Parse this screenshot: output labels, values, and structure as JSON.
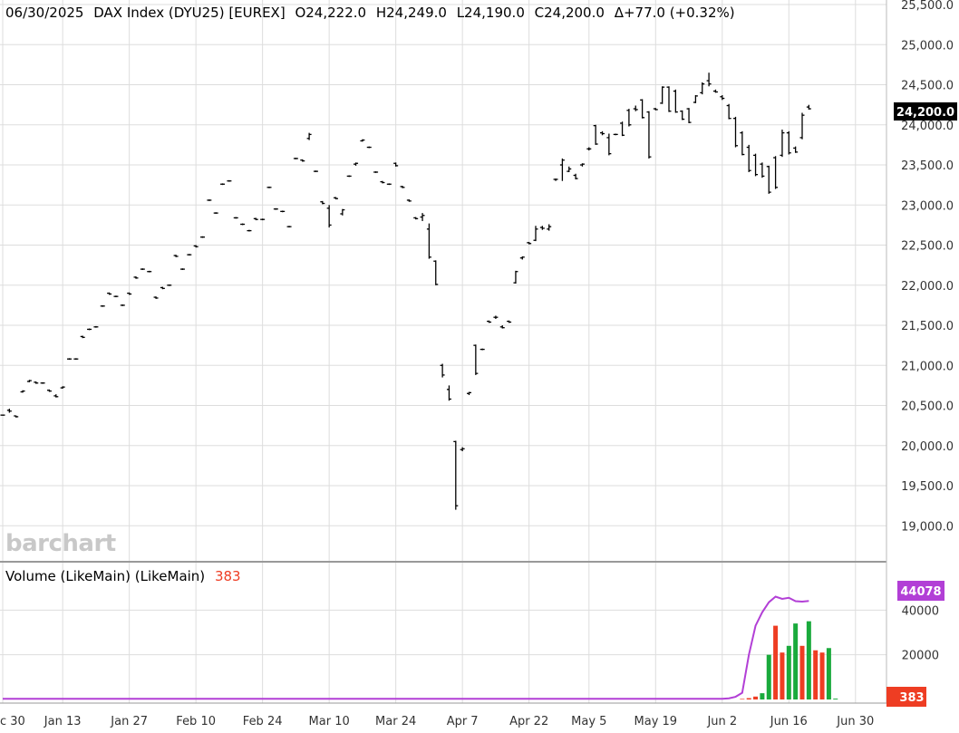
{
  "header": {
    "date": "06/30/2025",
    "symbol": "DAX Index (DYU25) [EUREX]",
    "open": "O24,222.0",
    "high": "H24,249.0",
    "low": "L24,190.0",
    "close": "C24,200.0",
    "change": "Δ+77.0 (+0.32%)"
  },
  "watermark": "barchart",
  "last_price_tag": "24,200.0",
  "volume_panel": {
    "label": "Volume (LikeMain)  (LikeMain)",
    "last_value": "383",
    "ma_tag": "44078",
    "volume_tag": "383"
  },
  "colors": {
    "ohlc": "#000000",
    "volume_up": "#1aaa3c",
    "volume_down": "#ee3d23",
    "volume_ma": "#b23fd6",
    "grid": "#dddddd",
    "last_tag_bg": "#000000"
  },
  "chart_data": [
    {
      "type": "ohlc",
      "title": "06/30/2025 DAX Index (DYU25) [EUREX]",
      "ylim": [
        18800,
        25500
      ],
      "y_ticks": [
        "25,500.0",
        "25,000.0",
        "24,500.0",
        "24,000.0",
        "23,500.0",
        "23,000.0",
        "22,500.0",
        "22,000.0",
        "21,500.0",
        "21,000.0",
        "20,500.0",
        "20,000.0",
        "19,500.0",
        "19,000.0"
      ],
      "y_tick_values": [
        25500,
        25000,
        24500,
        24000,
        23500,
        23000,
        22500,
        22000,
        21500,
        21000,
        20500,
        20000,
        19500,
        19000
      ],
      "x_ticks": [
        "c 30",
        "Jan 13",
        "Jan 27",
        "Feb 10",
        "Feb 24",
        "Mar 10",
        "Mar 24",
        "Apr 7",
        "Apr 22",
        "May 5",
        "May 19",
        "Jun 2",
        "Jun 16",
        "Jun 30"
      ],
      "x_tick_index": [
        0,
        9,
        19,
        29,
        39,
        49,
        59,
        69,
        79,
        88,
        98,
        108,
        118,
        128
      ],
      "bars": [
        [
          20380,
          20385,
          20375,
          20380
        ],
        [
          20440,
          20460,
          20410,
          20430
        ],
        [
          20370,
          20375,
          20350,
          20360
        ],
        [
          20670,
          20690,
          20660,
          20680
        ],
        [
          20800,
          20820,
          20790,
          20810
        ],
        [
          20790,
          20800,
          20770,
          20780
        ],
        [
          20780,
          20790,
          20770,
          20780
        ],
        [
          20690,
          20700,
          20670,
          20680
        ],
        [
          20620,
          20640,
          20600,
          20610
        ],
        [
          20720,
          20740,
          20710,
          20730
        ],
        [
          21080,
          21090,
          21070,
          21080
        ],
        [
          21080,
          21090,
          21070,
          21080
        ],
        [
          21360,
          21370,
          21340,
          21350
        ],
        [
          21450,
          21460,
          21440,
          21450
        ],
        [
          21480,
          21490,
          21470,
          21480
        ],
        [
          21740,
          21750,
          21730,
          21740
        ],
        [
          21900,
          21910,
          21880,
          21890
        ],
        [
          21860,
          21870,
          21850,
          21860
        ],
        [
          21750,
          21760,
          21740,
          21750
        ],
        [
          21900,
          21910,
          21880,
          21890
        ],
        [
          22100,
          22110,
          22080,
          22090
        ],
        [
          22200,
          22210,
          22190,
          22200
        ],
        [
          22170,
          22180,
          22160,
          22170
        ],
        [
          21850,
          21860,
          21830,
          21840
        ],
        [
          21970,
          21980,
          21950,
          21960
        ],
        [
          22000,
          22010,
          21990,
          22000
        ],
        [
          22370,
          22380,
          22350,
          22360
        ],
        [
          22200,
          22210,
          22190,
          22200
        ],
        [
          22380,
          22390,
          22370,
          22380
        ],
        [
          22490,
          22500,
          22470,
          22480
        ],
        [
          22600,
          22610,
          22590,
          22600
        ],
        [
          23060,
          23070,
          23050,
          23060
        ],
        [
          22900,
          22910,
          22890,
          22900
        ],
        [
          23260,
          23270,
          23250,
          23260
        ],
        [
          23300,
          23310,
          23290,
          23300
        ],
        [
          22840,
          22850,
          22830,
          22840
        ],
        [
          22760,
          22770,
          22750,
          22760
        ],
        [
          22680,
          22690,
          22670,
          22680
        ],
        [
          22830,
          22840,
          22810,
          22820
        ],
        [
          22820,
          22830,
          22810,
          22820
        ],
        [
          23220,
          23230,
          23210,
          23220
        ],
        [
          22950,
          22960,
          22940,
          22950
        ],
        [
          22920,
          22930,
          22910,
          22920
        ],
        [
          22730,
          22740,
          22720,
          22730
        ],
        [
          23580,
          23590,
          23570,
          23580
        ],
        [
          23560,
          23570,
          23540,
          23550
        ],
        [
          23830,
          23900,
          23810,
          23880
        ],
        [
          23420,
          23430,
          23410,
          23420
        ],
        [
          23040,
          23050,
          23010,
          23020
        ],
        [
          22960,
          23000,
          22720,
          22750
        ],
        [
          23090,
          23100,
          23070,
          23080
        ],
        [
          22890,
          22950,
          22870,
          22940
        ],
        [
          23360,
          23370,
          23350,
          23360
        ],
        [
          23510,
          23530,
          23490,
          23520
        ],
        [
          23800,
          23820,
          23790,
          23810
        ],
        [
          23720,
          23730,
          23710,
          23720
        ],
        [
          23410,
          23420,
          23400,
          23410
        ],
        [
          23290,
          23300,
          23270,
          23280
        ],
        [
          23260,
          23270,
          23250,
          23260
        ],
        [
          23520,
          23530,
          23480,
          23490
        ],
        [
          23230,
          23240,
          23210,
          23220
        ],
        [
          23060,
          23070,
          23040,
          23050
        ],
        [
          22840,
          22850,
          22820,
          22830
        ],
        [
          22850,
          22900,
          22800,
          22870
        ],
        [
          22700,
          22770,
          22330,
          22350
        ],
        [
          22300,
          22310,
          22000,
          22010
        ],
        [
          21000,
          21020,
          20850,
          20880
        ],
        [
          20700,
          20750,
          20560,
          20580
        ],
        [
          20050,
          20060,
          19200,
          19250
        ],
        [
          19950,
          19980,
          19930,
          19960
        ],
        [
          20650,
          20670,
          20630,
          20660
        ],
        [
          21250,
          21260,
          20880,
          20900
        ],
        [
          21200,
          21210,
          21190,
          21200
        ],
        [
          21550,
          21560,
          21530,
          21540
        ],
        [
          21600,
          21620,
          21580,
          21600
        ],
        [
          21480,
          21500,
          21460,
          21470
        ],
        [
          21550,
          21560,
          21530,
          21540
        ],
        [
          22030,
          22180,
          22020,
          22170
        ],
        [
          22340,
          22360,
          22320,
          22350
        ],
        [
          22530,
          22540,
          22510,
          22520
        ],
        [
          22560,
          22740,
          22550,
          22700
        ],
        [
          22720,
          22740,
          22690,
          22710
        ],
        [
          22700,
          22760,
          22680,
          22730
        ],
        [
          23320,
          23330,
          23300,
          23320
        ],
        [
          23500,
          23580,
          23300,
          23560
        ],
        [
          23420,
          23480,
          23410,
          23450
        ],
        [
          23370,
          23390,
          23320,
          23330
        ],
        [
          23500,
          23520,
          23480,
          23510
        ],
        [
          23700,
          23720,
          23680,
          23700
        ],
        [
          23990,
          24000,
          23750,
          23760
        ],
        [
          23900,
          23920,
          23870,
          23890
        ],
        [
          23840,
          23890,
          23620,
          23640
        ],
        [
          23880,
          23890,
          23870,
          23880
        ],
        [
          24020,
          24040,
          23860,
          23870
        ],
        [
          24180,
          24200,
          23980,
          24000
        ],
        [
          24200,
          24240,
          24170,
          24190
        ],
        [
          24310,
          24320,
          24080,
          24090
        ],
        [
          24160,
          24170,
          23580,
          23600
        ],
        [
          24200,
          24210,
          24180,
          24190
        ],
        [
          24270,
          24480,
          24260,
          24470
        ],
        [
          24470,
          24480,
          24160,
          24170
        ],
        [
          24420,
          24440,
          24150,
          24160
        ],
        [
          24170,
          24180,
          24060,
          24070
        ],
        [
          24200,
          24210,
          24020,
          24030
        ],
        [
          24280,
          24370,
          24270,
          24360
        ],
        [
          24400,
          24530,
          24380,
          24510
        ],
        [
          24550,
          24650,
          24480,
          24510
        ],
        [
          24420,
          24440,
          24400,
          24410
        ],
        [
          24350,
          24370,
          24310,
          24330
        ],
        [
          24240,
          24260,
          24070,
          24080
        ],
        [
          24080,
          24100,
          23720,
          23740
        ],
        [
          23900,
          23920,
          23620,
          23630
        ],
        [
          23720,
          23750,
          23410,
          23430
        ],
        [
          23620,
          23640,
          23360,
          23380
        ],
        [
          23510,
          23530,
          23340,
          23360
        ],
        [
          23480,
          23490,
          23140,
          23160
        ],
        [
          23590,
          23610,
          23200,
          23220
        ],
        [
          23620,
          23940,
          23600,
          23900
        ],
        [
          23900,
          23920,
          23630,
          23650
        ],
        [
          23710,
          23730,
          23650,
          23660
        ],
        [
          23840,
          24150,
          23820,
          24120
        ],
        [
          24222,
          24249,
          24190,
          24200
        ]
      ]
    },
    {
      "type": "bar",
      "title": "Volume (LikeMain)  (LikeMain)",
      "ylim": [
        0,
        60000
      ],
      "y_ticks": [
        "40000",
        "20000"
      ],
      "y_tick_values": [
        40000,
        20000
      ],
      "series": [
        {
          "name": "Volume",
          "start_index": 111,
          "values": [
            250,
            600,
            1300,
            2800,
            20000,
            33000,
            21000,
            24000,
            34000,
            24000,
            35000,
            22000,
            21000,
            23000,
            383
          ],
          "up": [
            false,
            false,
            false,
            true,
            true,
            false,
            false,
            true,
            true,
            false,
            true,
            false,
            false,
            true,
            true
          ]
        },
        {
          "name": "MA",
          "values_tail": [
            300,
            300,
            500,
            1200,
            3000,
            20000,
            33000,
            39000,
            43500,
            46000,
            45000,
            45500,
            44000,
            43800,
            44078
          ]
        }
      ]
    }
  ]
}
